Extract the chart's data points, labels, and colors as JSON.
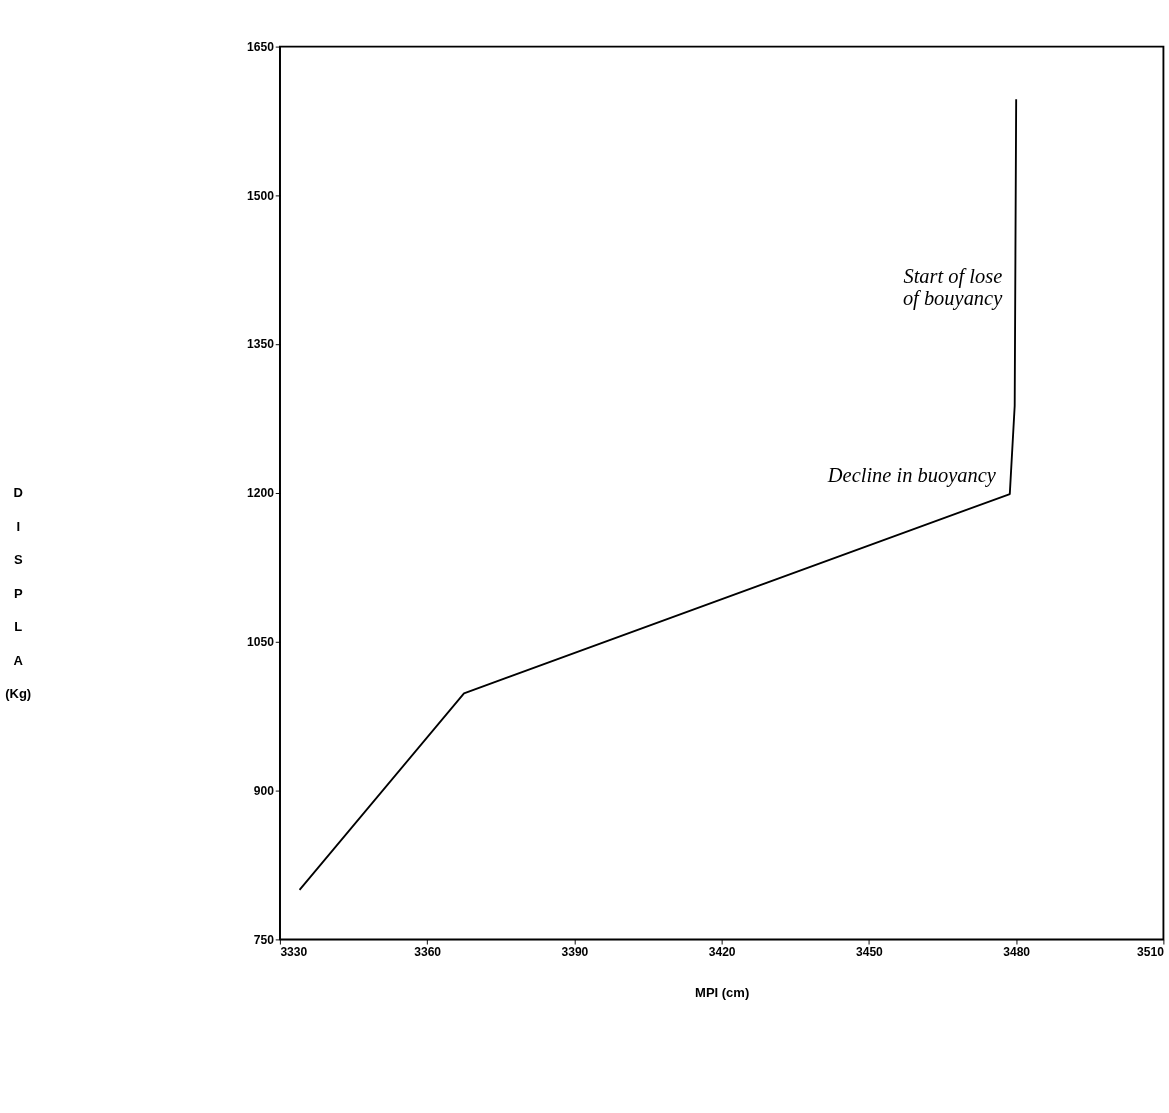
{
  "chart_data": {
    "type": "line",
    "xlabel": "MPI (cm)",
    "ylabel": "DISPLA (Kg)",
    "x": [
      3334,
      3367.5,
      3478.7,
      3479.7,
      3480
    ],
    "series": [
      {
        "color": "#000000",
        "values": [
          800,
          998,
          1199,
          1288,
          1597
        ]
      }
    ],
    "xlim": [
      3330,
      3510
    ],
    "xticks": [
      3330,
      3360,
      3390,
      3420,
      3450,
      3480,
      3510
    ],
    "ylim": [
      750,
      1650
    ],
    "yticks": [
      750,
      900,
      1050,
      1200,
      1350,
      1500,
      1650
    ],
    "grid": false,
    "marker": "none",
    "line_style": "solid",
    "annotations": [
      {
        "text": "Start of lose\nof bouyancy",
        "x": 3480,
        "y": 1400
      },
      {
        "text": "Decline in buoyancy",
        "x": 3478.7,
        "y": 1199
      }
    ]
  }
}
